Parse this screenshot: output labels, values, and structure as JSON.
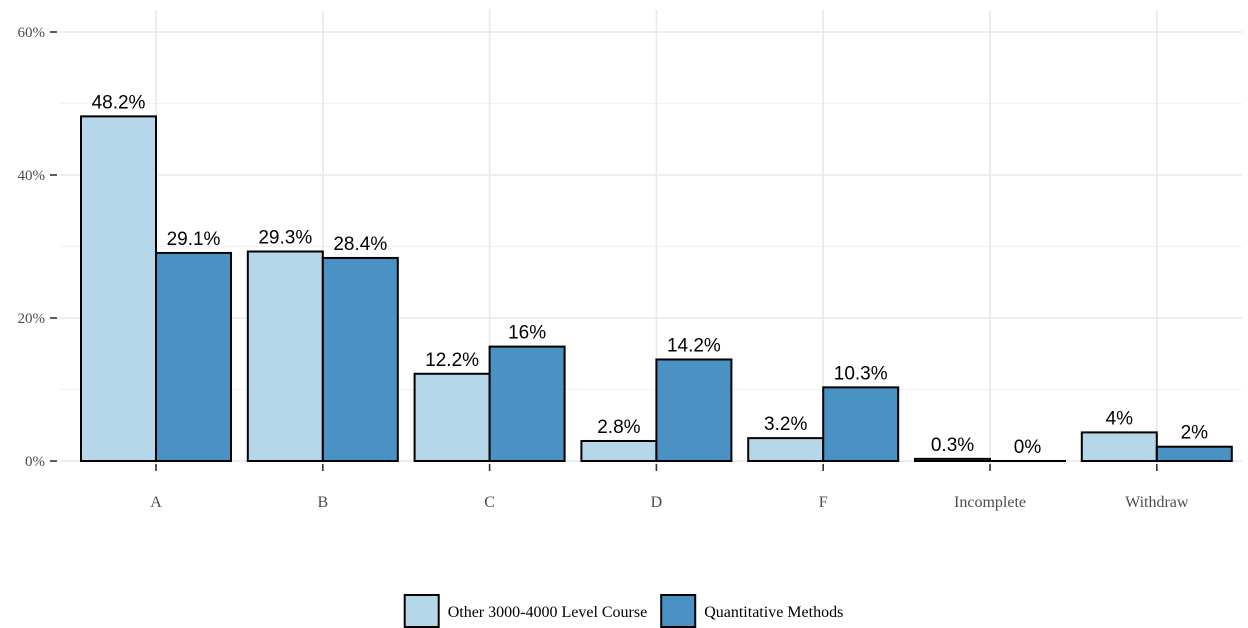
{
  "chart_data": {
    "type": "bar",
    "title": "",
    "xlabel": "",
    "ylabel": "",
    "ylim": [
      0,
      60
    ],
    "y_ticks": [
      "0%",
      "20%",
      "40%",
      "60%"
    ],
    "categories": [
      "A",
      "B",
      "C",
      "D",
      "F",
      "Incomplete",
      "Withdraw"
    ],
    "series": [
      {
        "name": "Other 3000-4000 Level Course",
        "color": "#b6d6ea",
        "values": [
          48.2,
          29.3,
          12.2,
          2.8,
          3.2,
          0.3,
          4
        ],
        "labels": [
          "48.2%",
          "29.3%",
          "12.2%",
          "2.8%",
          "3.2%",
          "0.3%",
          "4%"
        ]
      },
      {
        "name": "Quantitative Methods",
        "color": "#4a92c3",
        "values": [
          29.1,
          28.4,
          16,
          14.2,
          10.3,
          0,
          2
        ],
        "labels": [
          "29.1%",
          "28.4%",
          "16%",
          "14.2%",
          "10.3%",
          "0%",
          "2%"
        ]
      }
    ],
    "grid": true,
    "legend_position": "bottom"
  }
}
